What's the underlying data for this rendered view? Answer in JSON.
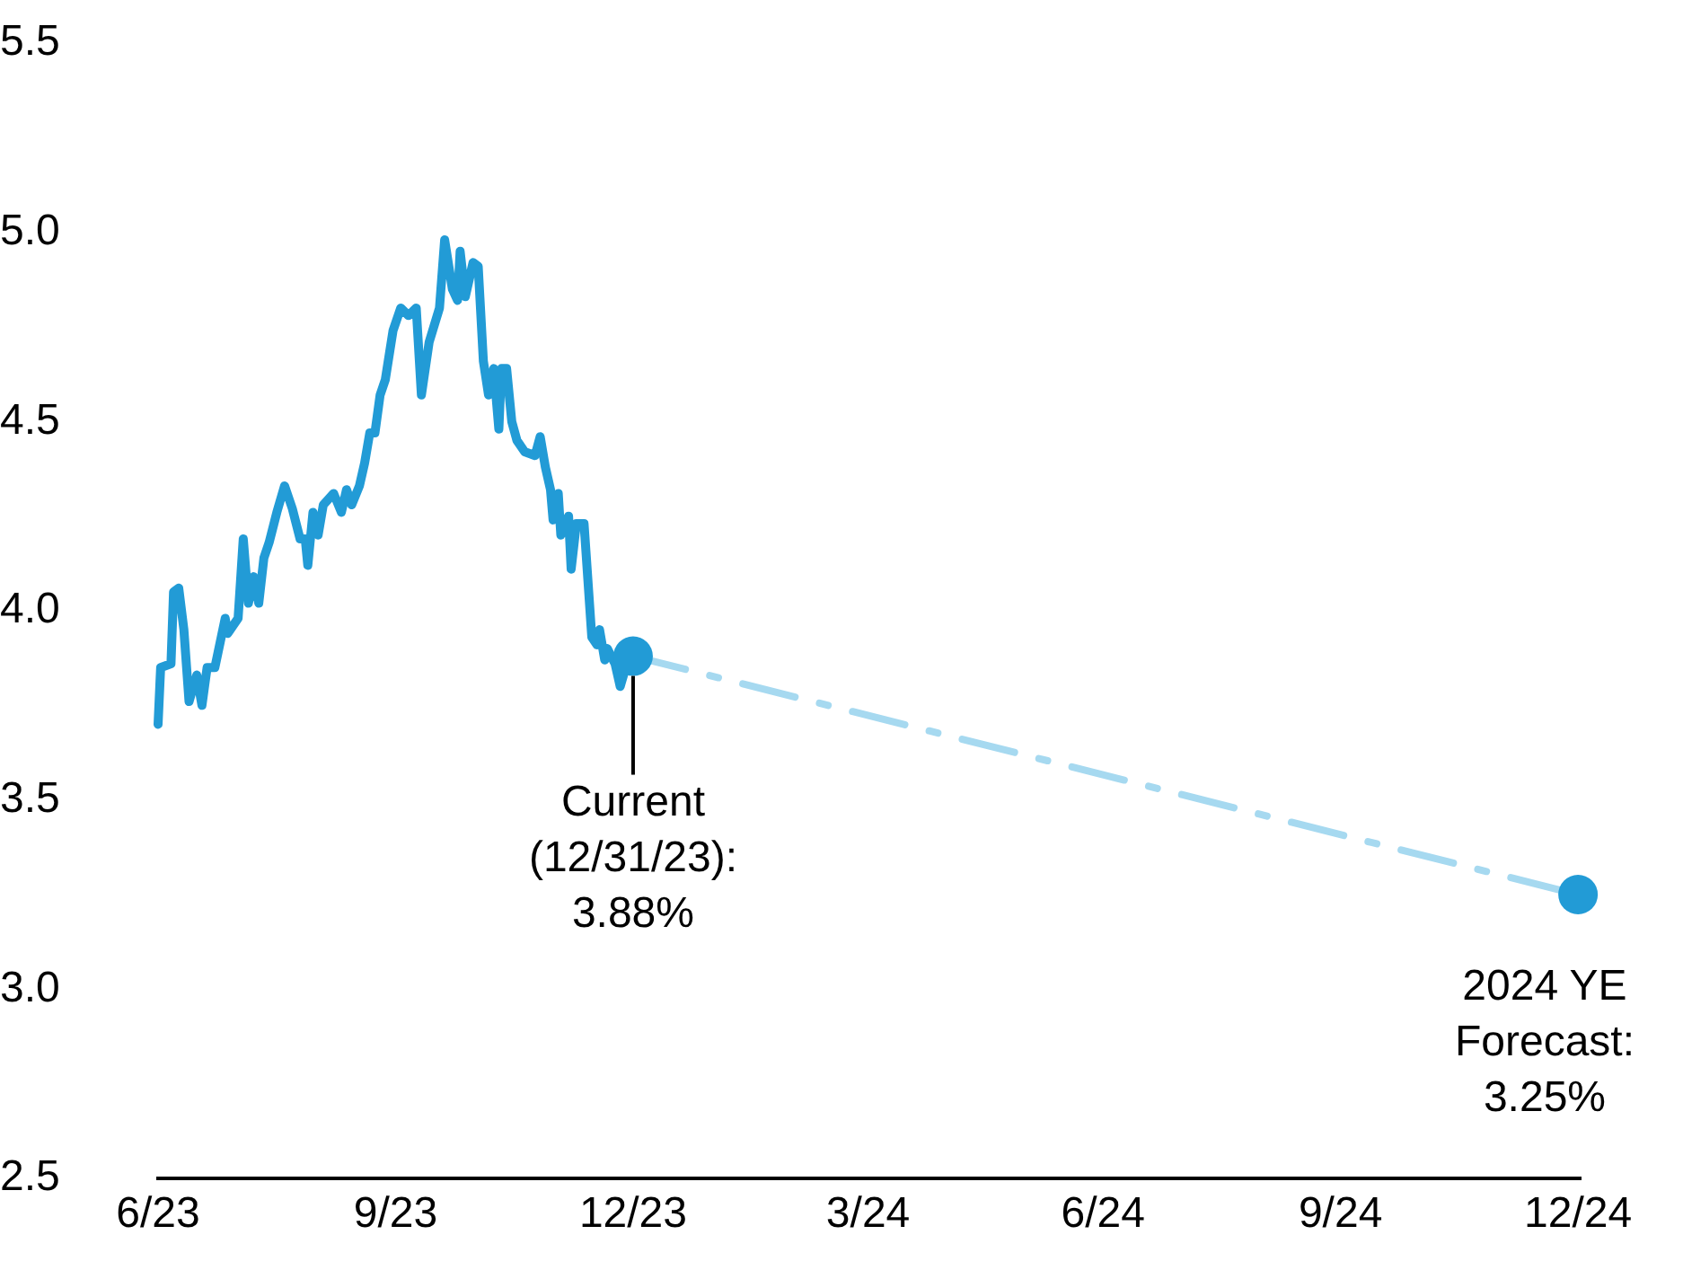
{
  "chart_data": {
    "type": "line",
    "xlim": [
      "2023-06-30",
      "2025-01-01"
    ],
    "xticks": [
      {
        "value": "2023-06-30",
        "label": "6/23"
      },
      {
        "value": "2023-09-30",
        "label": "9/23"
      },
      {
        "value": "2023-12-31",
        "label": "12/23"
      },
      {
        "value": "2024-03-31",
        "label": "3/24"
      },
      {
        "value": "2024-06-30",
        "label": "6/24"
      },
      {
        "value": "2024-09-30",
        "label": "9/24"
      },
      {
        "value": "2024-12-31",
        "label": "12/24"
      }
    ],
    "ylim": [
      2.5,
      5.5
    ],
    "yticks": [
      2.5,
      {
        "value": 3,
        "label": "3.0"
      },
      3.5,
      {
        "value": 4,
        "label": "4.0"
      },
      4.5,
      {
        "value": 5,
        "label": "5.0"
      },
      5.5
    ],
    "grid": false,
    "legend": false,
    "series": [
      {
        "color": "#229bd6",
        "marker": "none",
        "line_style": "solid",
        "x": [
          "2023-06-30",
          "2023-07-01",
          "2023-07-05",
          "2023-07-06",
          "2023-07-08",
          "2023-07-10",
          "2023-07-12",
          "2023-07-15",
          "2023-07-17",
          "2023-07-19",
          "2023-07-22",
          "2023-07-26",
          "2023-07-27",
          "2023-07-31",
          "2023-08-02",
          "2023-08-04",
          "2023-08-06",
          "2023-08-08",
          "2023-08-10",
          "2023-08-12",
          "2023-08-15",
          "2023-08-18",
          "2023-08-21",
          "2023-08-24",
          "2023-08-26",
          "2023-08-27",
          "2023-08-29",
          "2023-08-31",
          "2023-09-02",
          "2023-09-06",
          "2023-09-09",
          "2023-09-11",
          "2023-09-13",
          "2023-09-16",
          "2023-09-18",
          "2023-09-20",
          "2023-09-22",
          "2023-09-24",
          "2023-09-26",
          "2023-09-29",
          "2023-10-02",
          "2023-10-05",
          "2023-10-08",
          "2023-10-10",
          "2023-10-13",
          "2023-10-17",
          "2023-10-19",
          "2023-10-22",
          "2023-10-24",
          "2023-10-25",
          "2023-10-27",
          "2023-10-30",
          "2023-11-01",
          "2023-11-03",
          "2023-11-05",
          "2023-11-07",
          "2023-11-09",
          "2023-11-10",
          "2023-11-12",
          "2023-11-14",
          "2023-11-16",
          "2023-11-19",
          "2023-11-23",
          "2023-11-25",
          "2023-11-27",
          "2023-11-29",
          "2023-11-30",
          "2023-12-02",
          "2023-12-03",
          "2023-12-06",
          "2023-12-07",
          "2023-12-09",
          "2023-12-12",
          "2023-12-15",
          "2023-12-17",
          "2023-12-18",
          "2023-12-20",
          "2023-12-21",
          "2023-12-24",
          "2023-12-26",
          "2023-12-29",
          "2023-12-31"
        ],
        "values": [
          3.7,
          3.85,
          3.86,
          4.05,
          4.06,
          3.95,
          3.76,
          3.83,
          3.75,
          3.85,
          3.85,
          3.98,
          3.94,
          3.98,
          4.19,
          4.02,
          4.09,
          4.02,
          4.14,
          4.18,
          4.26,
          4.33,
          4.27,
          4.19,
          4.19,
          4.12,
          4.26,
          4.2,
          4.28,
          4.31,
          4.26,
          4.32,
          4.28,
          4.33,
          4.39,
          4.47,
          4.47,
          4.57,
          4.61,
          4.74,
          4.8,
          4.78,
          4.8,
          4.57,
          4.71,
          4.8,
          4.98,
          4.85,
          4.82,
          4.95,
          4.83,
          4.92,
          4.91,
          4.66,
          4.57,
          4.64,
          4.48,
          4.64,
          4.64,
          4.5,
          4.45,
          4.42,
          4.41,
          4.46,
          4.38,
          4.32,
          4.24,
          4.31,
          4.2,
          4.25,
          4.11,
          4.23,
          4.23,
          3.93,
          3.91,
          3.95,
          3.87,
          3.9,
          3.86,
          3.8,
          3.87,
          3.88
        ]
      },
      {
        "type": "line",
        "color": "#a6d9f0",
        "marker": "none",
        "line_style": "dashed",
        "x": [
          "2023-12-31",
          "2024-12-31"
        ],
        "values": [
          3.88,
          3.25
        ]
      },
      {
        "type": "scatter",
        "color": "#229bd6",
        "marker": "circle",
        "x": [
          "2023-12-31",
          "2024-12-31"
        ],
        "values": [
          3.88,
          3.25
        ]
      }
    ],
    "annotations": [
      {
        "text": "Current\n(12/31/23):\n3.88%",
        "x": "2023-12-31",
        "y": 3.88
      },
      {
        "text": "2024 YE\nForecast:\n3.25%",
        "x": "2024-12-31",
        "y": 3.25
      }
    ]
  }
}
